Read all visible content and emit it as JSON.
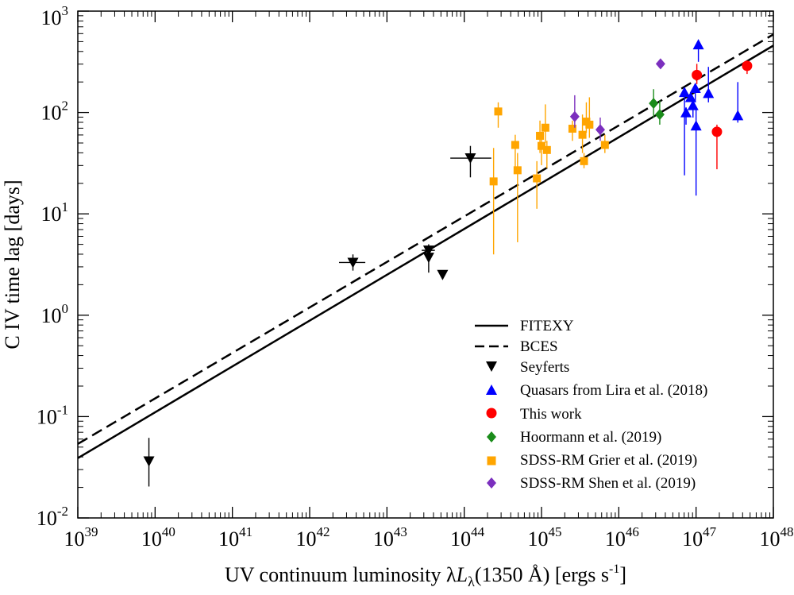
{
  "chart_data": {
    "type": "scatter",
    "xscale": "log",
    "yscale": "log",
    "xlim_exp": [
      39,
      48
    ],
    "ylim_exp": [
      -2,
      3
    ],
    "xlabel_parts": {
      "pre": "UV continuum luminosity ",
      "lambda": "λ",
      "L": "L",
      "sub": "λ",
      "post": "(1350 Å)  [ergs s",
      "sup": "-1",
      "close": "]"
    },
    "ylabel": "C IV time lag [days]",
    "tick_base": "10",
    "x_tick_exponents": [
      "39",
      "40",
      "41",
      "42",
      "43",
      "44",
      "45",
      "46",
      "47",
      "48"
    ],
    "y_tick_exponents": [
      "-2",
      "-1",
      "0",
      "1",
      "2",
      "3"
    ],
    "legend": {
      "fitexy": "FITEXY",
      "bces": "BCES",
      "seyferts": "Seyferts",
      "lira": "Quasars from Lira et al. (2018)",
      "thiswork": "This work",
      "hoormann": "Hoormann et al. (2019)",
      "grier": "SDSS-RM Grier et al. (2019)",
      "shen": "SDSS-RM Shen et al. (2019)"
    },
    "colors": {
      "seyferts": "#000000",
      "lira": "#0000ff",
      "thiswork": "#ff0000",
      "hoormann": "#1a8c1a",
      "grier": "#ffa500",
      "shen": "#7b2fbe"
    },
    "lines": {
      "fitexy": {
        "logL": [
          39,
          48
        ],
        "logTau": [
          -1.41,
          2.66
        ]
      },
      "bces": {
        "logL": [
          39,
          48
        ],
        "logTau": [
          -1.27,
          2.77
        ]
      }
    },
    "series": [
      {
        "name": "Seyferts",
        "marker": "tri-down",
        "points": [
          {
            "x": 39.92,
            "y": -1.44,
            "ylo": -1.69,
            "yhi": -1.21
          },
          {
            "x": 42.56,
            "y": 0.52,
            "xlo": 42.38,
            "xhi": 42.72,
            "ylo": 0.44,
            "yhi": 0.6
          },
          {
            "x": 43.54,
            "y": 0.64,
            "xlo": 43.45,
            "xhi": 43.62,
            "ylo": 0.58,
            "yhi": 0.7
          },
          {
            "x": 43.54,
            "y": 0.57,
            "ylo": 0.42,
            "yhi": 0.65
          },
          {
            "x": 43.72,
            "y": 0.4
          },
          {
            "x": 44.08,
            "y": 1.55,
            "xlo": 43.82,
            "xhi": 44.35,
            "ylo": 1.36,
            "yhi": 1.67
          }
        ]
      },
      {
        "name": "Quasars from Lira et al. (2018)",
        "marker": "tri-up",
        "points": [
          {
            "x": 46.85,
            "y": 2.2,
            "ylo": 1.38,
            "yhi": 2.23
          },
          {
            "x": 46.87,
            "y": 2.0,
            "ylo": 1.88,
            "yhi": 2.05
          },
          {
            "x": 46.93,
            "y": 2.15
          },
          {
            "x": 46.96,
            "y": 2.07,
            "ylo": 1.95,
            "yhi": 2.1
          },
          {
            "x": 46.99,
            "y": 2.24,
            "ylo": 2.1,
            "yhi": 2.28
          },
          {
            "x": 47.0,
            "y": 1.87,
            "ylo": 1.18,
            "yhi": 2.05
          },
          {
            "x": 47.03,
            "y": 2.67,
            "ylo": 2.5,
            "yhi": 2.7
          },
          {
            "x": 47.16,
            "y": 2.19,
            "ylo": 2.1,
            "yhi": 2.45
          },
          {
            "x": 47.54,
            "y": 1.97,
            "ylo": 1.9,
            "yhi": 2.3
          }
        ]
      },
      {
        "name": "This work",
        "marker": "circle",
        "points": [
          {
            "x": 47.01,
            "y": 2.37,
            "ylo": 2.28,
            "yhi": 2.48
          },
          {
            "x": 47.27,
            "y": 1.81,
            "ylo": 1.44,
            "yhi": 1.88
          },
          {
            "x": 47.66,
            "y": 2.46,
            "ylo": 2.38,
            "yhi": 2.5
          }
        ]
      },
      {
        "name": "Hoormann et al. (2019)",
        "marker": "diamond",
        "points": [
          {
            "x": 46.45,
            "y": 2.09,
            "ylo": 1.95,
            "yhi": 2.23
          },
          {
            "x": 46.53,
            "y": 1.98,
            "ylo": 1.88,
            "yhi": 2.12
          }
        ]
      },
      {
        "name": "SDSS-RM Grier et al. (2019)",
        "marker": "square",
        "points": [
          {
            "x": 44.38,
            "y": 1.32,
            "ylo": 0.6,
            "yhi": 1.65
          },
          {
            "x": 44.44,
            "y": 2.01,
            "ylo": 1.85,
            "yhi": 2.1
          },
          {
            "x": 44.66,
            "y": 1.68,
            "ylo": 1.4,
            "yhi": 1.78
          },
          {
            "x": 44.69,
            "y": 1.43,
            "ylo": 0.72,
            "yhi": 1.6
          },
          {
            "x": 44.94,
            "y": 1.35,
            "ylo": 1.05,
            "yhi": 1.52
          },
          {
            "x": 44.98,
            "y": 1.77,
            "ylo": 1.6,
            "yhi": 1.92
          },
          {
            "x": 45.0,
            "y": 1.67,
            "ylo": 1.48,
            "yhi": 1.8
          },
          {
            "x": 45.05,
            "y": 1.85,
            "ylo": 1.7,
            "yhi": 2.08
          },
          {
            "x": 45.07,
            "y": 1.63,
            "ylo": 1.45,
            "yhi": 1.72
          },
          {
            "x": 45.4,
            "y": 1.84,
            "ylo": 1.72,
            "yhi": 1.92
          },
          {
            "x": 45.53,
            "y": 1.78,
            "ylo": 1.6,
            "yhi": 1.98
          },
          {
            "x": 45.55,
            "y": 1.52,
            "ylo": 1.45,
            "yhi": 1.6
          },
          {
            "x": 45.58,
            "y": 1.91,
            "ylo": 1.8,
            "yhi": 2.1
          },
          {
            "x": 45.62,
            "y": 1.88,
            "ylo": 1.75,
            "yhi": 2.15
          },
          {
            "x": 45.82,
            "y": 1.68,
            "ylo": 1.6,
            "yhi": 1.78
          }
        ]
      },
      {
        "name": "SDSS-RM Shen et al. (2019)",
        "marker": "diamond",
        "points": [
          {
            "x": 45.43,
            "y": 1.96,
            "ylo": 1.85,
            "yhi": 2.17
          },
          {
            "x": 45.76,
            "y": 1.83,
            "ylo": 1.72,
            "yhi": 1.95
          },
          {
            "x": 46.54,
            "y": 2.48
          }
        ]
      }
    ]
  }
}
